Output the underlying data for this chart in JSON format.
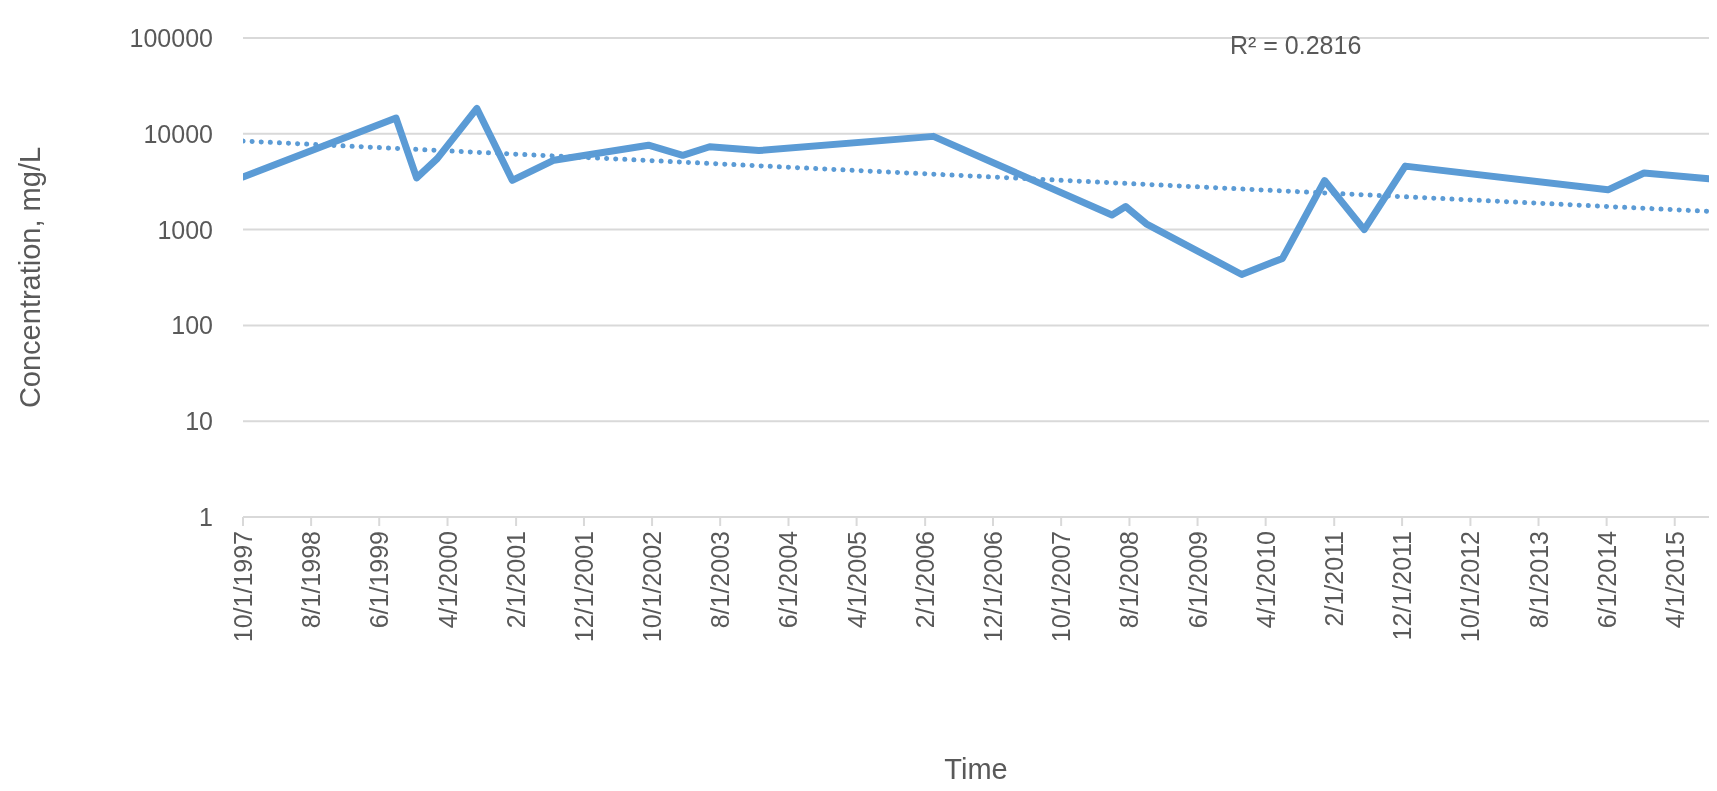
{
  "chart_data": {
    "type": "line",
    "xlabel": "Time",
    "ylabel": "Concentration, mg/L",
    "log": "y",
    "grid": "y",
    "xlim": [
      "1997-10-01",
      "2015-09-01"
    ],
    "xticks": [
      {
        "value": "1997-10-01",
        "label": "10/1/1997"
      },
      {
        "value": "1998-08-01",
        "label": "8/1/1998"
      },
      {
        "value": "1999-06-01",
        "label": "6/1/1999"
      },
      {
        "value": "2000-04-01",
        "label": "4/1/2000"
      },
      {
        "value": "2001-02-01",
        "label": "2/1/2001"
      },
      {
        "value": "2001-12-01",
        "label": "12/1/2001"
      },
      {
        "value": "2002-10-01",
        "label": "10/1/2002"
      },
      {
        "value": "2003-08-01",
        "label": "8/1/2003"
      },
      {
        "value": "2004-06-01",
        "label": "6/1/2004"
      },
      {
        "value": "2005-04-01",
        "label": "4/1/2005"
      },
      {
        "value": "2006-02-01",
        "label": "2/1/2006"
      },
      {
        "value": "2006-12-01",
        "label": "12/1/2006"
      },
      {
        "value": "2007-10-01",
        "label": "10/1/2007"
      },
      {
        "value": "2008-08-01",
        "label": "8/1/2008"
      },
      {
        "value": "2009-06-01",
        "label": "6/1/2009"
      },
      {
        "value": "2010-04-01",
        "label": "4/1/2010"
      },
      {
        "value": "2011-02-01",
        "label": "2/1/2011"
      },
      {
        "value": "2011-12-01",
        "label": "12/1/2011"
      },
      {
        "value": "2012-10-01",
        "label": "10/1/2012"
      },
      {
        "value": "2013-08-01",
        "label": "8/1/2013"
      },
      {
        "value": "2014-06-01",
        "label": "6/1/2014"
      },
      {
        "value": "2015-04-01",
        "label": "4/1/2015"
      }
    ],
    "ylim": [
      1,
      100000
    ],
    "yticks": [
      1,
      10,
      100,
      1000,
      10000,
      100000
    ],
    "annotations": [
      "R² = 0.2816"
    ],
    "series": [
      {
        "color": "#5b9bd5",
        "line_style": "solid",
        "x": [
          "1997-10-01",
          "1999-08-15",
          "1999-11-15",
          "2000-02-15",
          "2000-08-10",
          "2001-01-15",
          "2001-07-20",
          "2002-09-15",
          "2003-02-15",
          "2003-06-15",
          "2004-01-20",
          "2006-03-10",
          "2008-05-15",
          "2008-07-15",
          "2008-10-15",
          "2009-12-15",
          "2010-06-15",
          "2010-12-20",
          "2011-06-15",
          "2011-12-15",
          "2014-06-07",
          "2014-11-15",
          "2015-09-01"
        ],
        "values": [
          3550,
          14600,
          3470,
          5500,
          18400,
          3270,
          5300,
          7600,
          5960,
          7330,
          6680,
          9400,
          1420,
          1740,
          1150,
          340,
          500,
          3250,
          1000,
          4600,
          2600,
          3900,
          3400
        ]
      },
      {
        "type": "line",
        "color": "#5b9bd5",
        "line_style": "dotted",
        "x": [
          "1997-10-01",
          "2015-09-01"
        ],
        "values": [
          8400,
          1550
        ]
      }
    ]
  }
}
